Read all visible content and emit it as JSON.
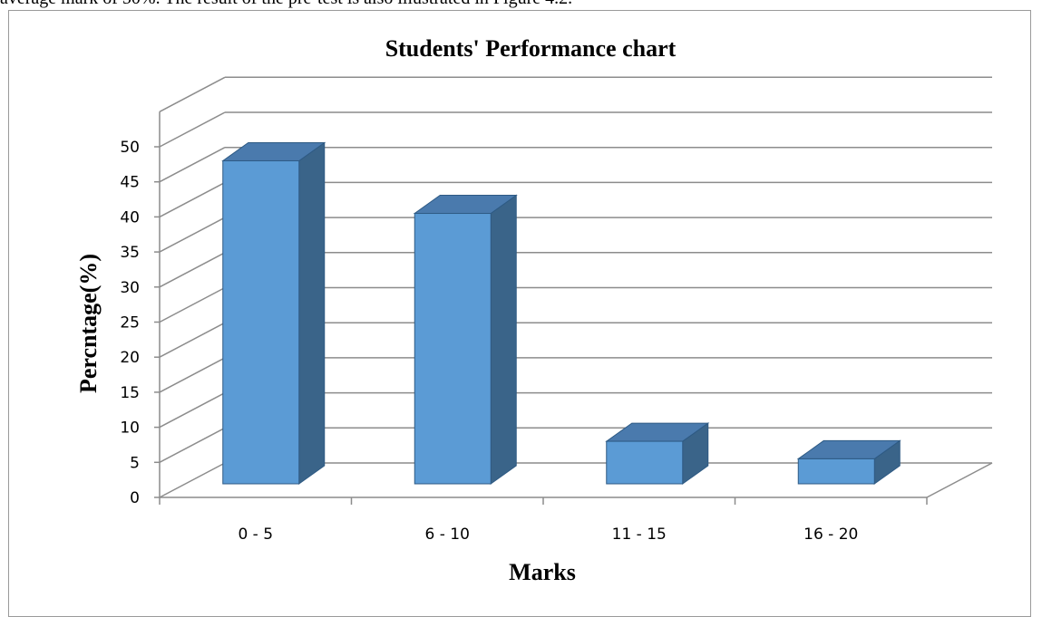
{
  "header_text": "average mark of 50%. The result of the pre-test is also illustrated in Figure 4.2.",
  "colors": {
    "bar_front": "#5b9bd5",
    "bar_side": "#3a6489",
    "bar_top": "#4a7aad",
    "bar_edge": "#2e5a84",
    "grid": "#8c8c8c"
  },
  "chart_data": {
    "type": "bar",
    "title": "Students' Performance chart",
    "xlabel": "Marks",
    "ylabel": "Percntage(%)",
    "categories": [
      "0 - 5",
      "6 - 10",
      "11 - 15",
      "16 - 20"
    ],
    "values": [
      48,
      40.5,
      8,
      5.5
    ],
    "ylim": [
      0,
      50
    ],
    "yticks": [
      0,
      5,
      10,
      15,
      20,
      25,
      30,
      35,
      40,
      45,
      50
    ],
    "grid": true,
    "legend": "none",
    "style": "3d"
  }
}
